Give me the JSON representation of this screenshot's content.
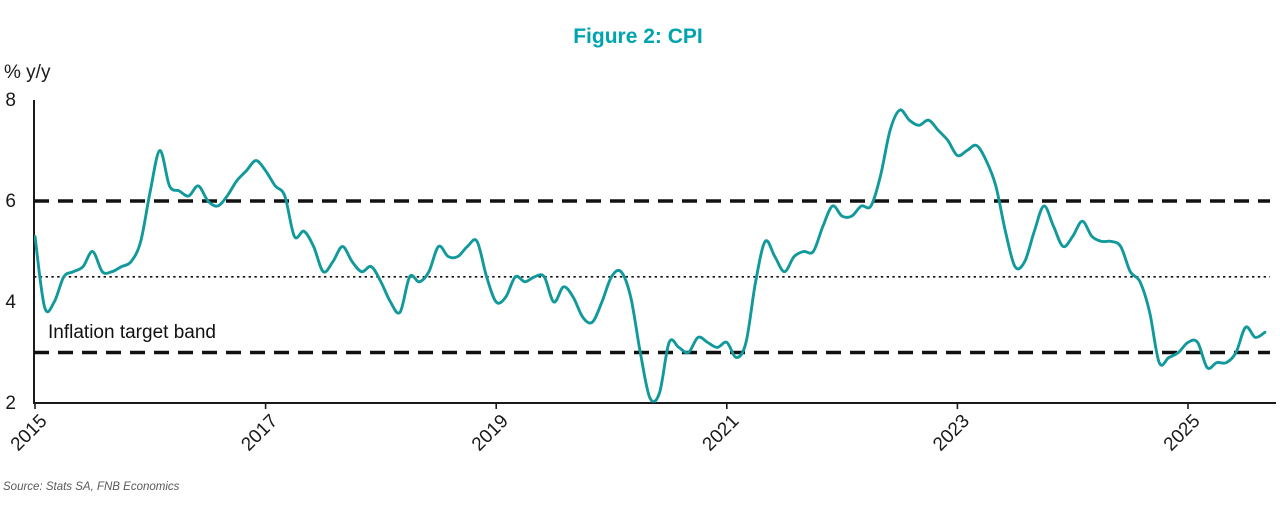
{
  "figure": {
    "title": "Figure 2: CPI",
    "y_unit_label": "% y/y",
    "band_annotation": "Inflation target band",
    "source": "Source: Stats SA, FNB Economics"
  },
  "colors": {
    "title": "#00a4ae",
    "line": "#12999c",
    "reference": "#111111",
    "axis": "#1a1a1a",
    "source_text": "#595959"
  },
  "chart_data": {
    "type": "line",
    "title": "Figure 2: CPI",
    "ylabel": "% y/y",
    "xlabel": "",
    "frequency": "monthly",
    "grid": false,
    "legend": "none",
    "ylim": [
      2,
      8
    ],
    "y_ticks": [
      2,
      4,
      6,
      8
    ],
    "x_tick_years": [
      2015,
      2017,
      2019,
      2021,
      2023,
      2025
    ],
    "x_tick_labels": [
      "2015",
      "2017",
      "2019",
      "2021",
      "2023",
      "2025"
    ],
    "annotation": "Inflation target band",
    "source": "Source: Stats SA, FNB Economics",
    "reference_lines": [
      {
        "name": "inflation-target-upper",
        "value": 6,
        "style": "dashed",
        "color": "#111111"
      },
      {
        "name": "inflation-target-midpoint",
        "value": 4.5,
        "style": "dotted",
        "color": "#111111"
      },
      {
        "name": "inflation-target-lower",
        "value": 3,
        "style": "dashed",
        "color": "#111111"
      }
    ],
    "x": [
      "2015-01",
      "2015-02",
      "2015-03",
      "2015-04",
      "2015-05",
      "2015-06",
      "2015-07",
      "2015-08",
      "2015-09",
      "2015-10",
      "2015-11",
      "2015-12",
      "2016-01",
      "2016-02",
      "2016-03",
      "2016-04",
      "2016-05",
      "2016-06",
      "2016-07",
      "2016-08",
      "2016-09",
      "2016-10",
      "2016-11",
      "2016-12",
      "2017-01",
      "2017-02",
      "2017-03",
      "2017-04",
      "2017-05",
      "2017-06",
      "2017-07",
      "2017-08",
      "2017-09",
      "2017-10",
      "2017-11",
      "2017-12",
      "2018-01",
      "2018-02",
      "2018-03",
      "2018-04",
      "2018-05",
      "2018-06",
      "2018-07",
      "2018-08",
      "2018-09",
      "2018-10",
      "2018-11",
      "2018-12",
      "2019-01",
      "2019-02",
      "2019-03",
      "2019-04",
      "2019-05",
      "2019-06",
      "2019-07",
      "2019-08",
      "2019-09",
      "2019-10",
      "2019-11",
      "2019-12",
      "2020-01",
      "2020-02",
      "2020-03",
      "2020-04",
      "2020-05",
      "2020-06",
      "2020-07",
      "2020-08",
      "2020-09",
      "2020-10",
      "2020-11",
      "2020-12",
      "2021-01",
      "2021-02",
      "2021-03",
      "2021-04",
      "2021-05",
      "2021-06",
      "2021-07",
      "2021-08",
      "2021-09",
      "2021-10",
      "2021-11",
      "2021-12",
      "2022-01",
      "2022-02",
      "2022-03",
      "2022-04",
      "2022-05",
      "2022-06",
      "2022-07",
      "2022-08",
      "2022-09",
      "2022-10",
      "2022-11",
      "2022-12",
      "2023-01",
      "2023-02",
      "2023-03",
      "2023-04",
      "2023-05",
      "2023-06",
      "2023-07",
      "2023-08",
      "2023-09",
      "2023-10",
      "2023-11",
      "2023-12",
      "2024-01",
      "2024-02",
      "2024-03",
      "2024-04",
      "2024-05",
      "2024-06",
      "2024-07",
      "2024-08",
      "2024-09",
      "2024-10",
      "2024-11",
      "2024-12",
      "2025-01",
      "2025-02",
      "2025-03",
      "2025-04",
      "2025-05",
      "2025-06",
      "2025-07",
      "2025-08",
      "2025-09"
    ],
    "series": [
      {
        "name": "CPI % y/y",
        "color": "#12999c",
        "values": [
          5.3,
          3.9,
          4.0,
          4.5,
          4.6,
          4.7,
          5.0,
          4.6,
          4.6,
          4.7,
          4.8,
          5.2,
          6.2,
          7.0,
          6.3,
          6.2,
          6.1,
          6.3,
          6.0,
          5.9,
          6.1,
          6.4,
          6.6,
          6.8,
          6.6,
          6.3,
          6.1,
          5.3,
          5.4,
          5.1,
          4.6,
          4.8,
          5.1,
          4.8,
          4.6,
          4.7,
          4.4,
          4.0,
          3.8,
          4.5,
          4.4,
          4.6,
          5.1,
          4.9,
          4.9,
          5.1,
          5.2,
          4.5,
          4.0,
          4.1,
          4.5,
          4.4,
          4.5,
          4.5,
          4.0,
          4.3,
          4.1,
          3.7,
          3.6,
          4.0,
          4.5,
          4.6,
          4.1,
          3.0,
          2.1,
          2.2,
          3.2,
          3.1,
          3.0,
          3.3,
          3.2,
          3.1,
          3.2,
          2.9,
          3.2,
          4.4,
          5.2,
          4.9,
          4.6,
          4.9,
          5.0,
          5.0,
          5.5,
          5.9,
          5.7,
          5.7,
          5.9,
          5.9,
          6.5,
          7.4,
          7.8,
          7.6,
          7.5,
          7.6,
          7.4,
          7.2,
          6.9,
          7.0,
          7.1,
          6.8,
          6.3,
          5.4,
          4.7,
          4.8,
          5.4,
          5.9,
          5.5,
          5.1,
          5.3,
          5.6,
          5.3,
          5.2,
          5.2,
          5.1,
          4.6,
          4.4,
          3.8,
          2.8,
          2.9,
          3.0,
          3.2,
          3.2,
          2.7,
          2.8,
          2.8,
          3.0,
          3.5,
          3.3,
          3.4
        ]
      }
    ]
  }
}
